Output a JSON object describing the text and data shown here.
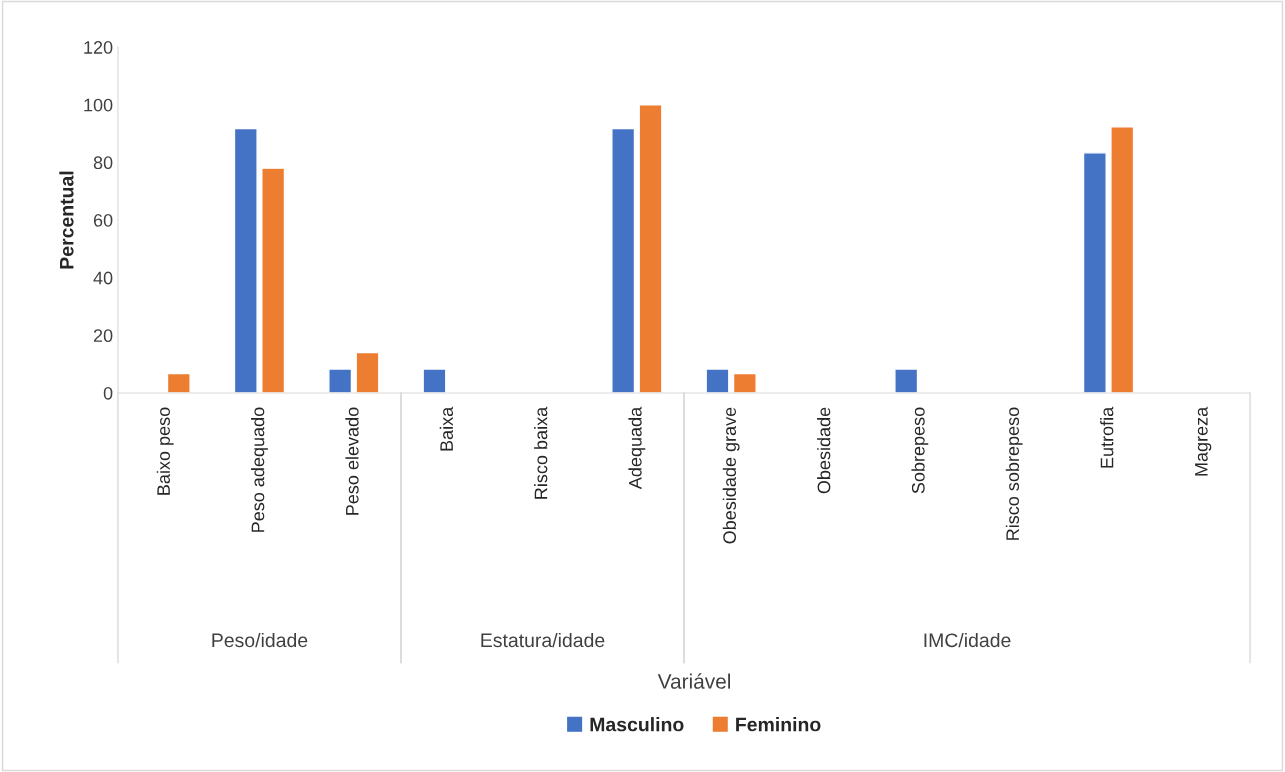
{
  "chart_data": {
    "type": "bar",
    "ylabel": "Percentual",
    "categories": [
      "Baixo peso",
      "Peso adequado",
      "Peso elevado",
      "Baixa",
      "Risco baixa",
      "Adequada",
      "Obesidade grave",
      "Obesidade",
      "Sobrepeso",
      "Risco sobrepeso",
      "Eutrofia",
      "Magreza"
    ],
    "series": [
      {
        "name": "Masculino",
        "color": "#4472c4",
        "values": [
          null,
          91.7,
          8.3,
          8.3,
          null,
          91.7,
          8.3,
          null,
          8.3,
          null,
          83.3,
          null
        ]
      },
      {
        "name": "Feminino",
        "color": "#ed7d31",
        "values": [
          6.7,
          78,
          14,
          null,
          null,
          100,
          6.7,
          null,
          null,
          null,
          92.3,
          null
        ]
      }
    ],
    "annotations": [
      "Peso/idade",
      "Estatura/idade",
      "IMC/idade",
      "Variável"
    ],
    "ylim": [
      0,
      120
    ],
    "yticks": [
      0,
      20,
      40,
      60,
      80,
      100,
      120
    ],
    "grid": false,
    "legend": "bottom"
  }
}
